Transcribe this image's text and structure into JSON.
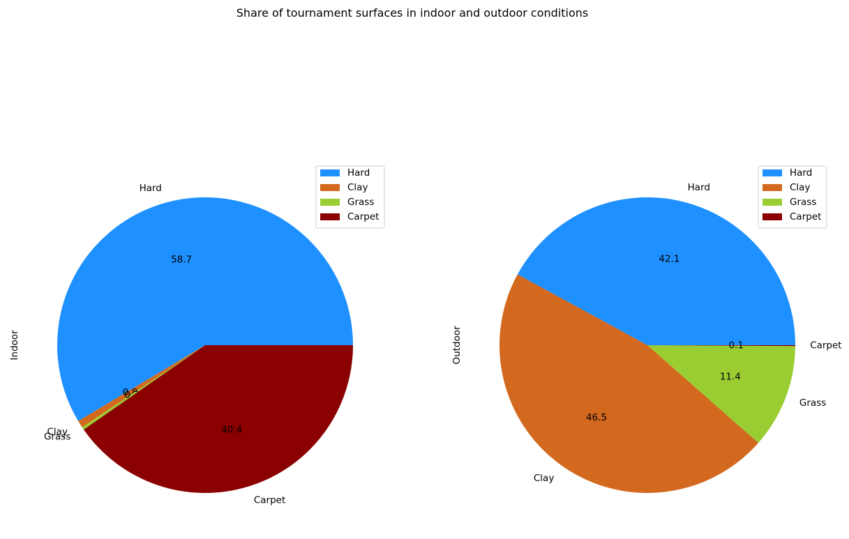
{
  "figure": {
    "title": "Share of tournament surfaces in indoor and outdoor conditions"
  },
  "colors": {
    "Hard": "#1e90ff",
    "Clay": "#d2691e",
    "Grass": "#9acd32",
    "Carpet": "#8b0000"
  },
  "chart_data": [
    {
      "type": "pie",
      "ylabel": "Indoor",
      "labels": [
        "Hard",
        "Clay",
        "Grass",
        "Carpet"
      ],
      "values": [
        58.7,
        0.8,
        0.3,
        40.4
      ],
      "autopct_format": "%.1f",
      "start_angle_deg": 0,
      "direction": "counterclockwise",
      "legend": {
        "entries": [
          "Hard",
          "Clay",
          "Grass",
          "Carpet"
        ],
        "placement": "upper right"
      }
    },
    {
      "type": "pie",
      "ylabel": "Outdoor",
      "labels": [
        "Hard",
        "Clay",
        "Grass",
        "Carpet"
      ],
      "values": [
        42.1,
        46.5,
        11.4,
        0.1
      ],
      "autopct_format": "%.1f",
      "start_angle_deg": 0,
      "direction": "counterclockwise",
      "legend": {
        "entries": [
          "Hard",
          "Clay",
          "Grass",
          "Carpet"
        ],
        "placement": "upper right"
      }
    }
  ]
}
